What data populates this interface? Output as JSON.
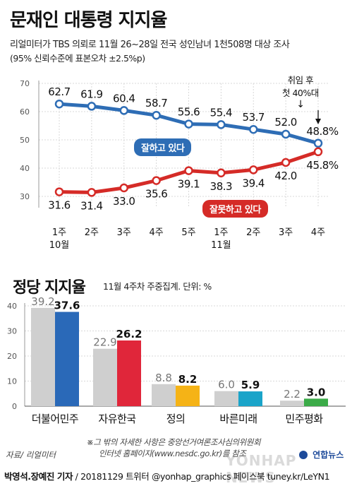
{
  "title": "문재인 대통령 지지율",
  "subtitle_line1": "리얼미터가 TBS 의뢰로 11월 26~28일 전국 성인남녀 1천508명 대상 조사",
  "subtitle_line2": "(95% 신뢰수준에 표본오차 ±2.5%p)",
  "callout_good": "잘하고 있다",
  "callout_bad": "잘못하고 있다",
  "tenure_note_line1": "취임 후",
  "tenure_note_line2": "첫 40%대",
  "tenure_arrow": "↓",
  "bar_title": "정당 지지율",
  "bar_subtitle": "11월 4주차 주중집계. 단위: %",
  "footnote_line1": "※그 밖의 자세한 사항은 중앙선거여론조사심의위원회",
  "footnote_line2": "인터넷 홈페이지(www.nesdc.go.kr)를 참조",
  "source": "자료/ 리얼미터",
  "logo_text": "연합뉴스",
  "watermark": "YONHAP NEWS",
  "credit_authors": "박영석.장예진 기자",
  "credit_rest": " / 20181129 트위터 @yonhap_graphics  페이스북 tuney.kr/LeYN1",
  "colors": {
    "positive_line": "#2e6db5",
    "negative_line": "#d52b27",
    "bar_prev": "#cfcfcf",
    "minju": "#2a69b8",
    "jayu": "#e0263a",
    "jeongui": "#f5b316",
    "bareun": "#1aa4c9",
    "pyeonghwa": "#3bab48"
  },
  "chart_data": [
    {
      "type": "line",
      "categories": [
        "1주\n10월",
        "2주",
        "3주",
        "4주",
        "5주",
        "1주\n11월",
        "2주",
        "3주",
        "4주"
      ],
      "ylim": [
        30,
        70
      ],
      "yticks": [
        30,
        40,
        50,
        60,
        70
      ],
      "grid": true,
      "series": [
        {
          "name": "잘하고 있다",
          "values": [
            62.7,
            61.9,
            60.4,
            58.7,
            55.6,
            55.4,
            53.7,
            52.0,
            48.8
          ]
        },
        {
          "name": "잘못하고 있다",
          "values": [
            31.6,
            31.4,
            33.0,
            35.6,
            39.1,
            38.3,
            39.4,
            42.0,
            45.8
          ]
        }
      ],
      "labels_positive": [
        "62.7",
        "61.9",
        "60.4",
        "58.7",
        "55.6",
        "55.4",
        "53.7",
        "52.0",
        "48.8"
      ],
      "labels_negative": [
        "31.6",
        "31.4",
        "33.0",
        "35.6",
        "39.1",
        "38.3",
        "39.4",
        "42.0",
        "45.8"
      ],
      "last_label_suffix": "%"
    },
    {
      "type": "bar",
      "categories": [
        "더불어민주",
        "자유한국",
        "정의",
        "바른미래",
        "민주평화"
      ],
      "ylim": [
        0,
        40
      ],
      "yticks": [
        0,
        10,
        20,
        30,
        40
      ],
      "grid": true,
      "series": [
        {
          "values": [
            39.2,
            22.9,
            8.8,
            6.0,
            2.2
          ]
        },
        {
          "values": [
            37.6,
            26.2,
            8.2,
            5.9,
            3.0
          ]
        }
      ]
    }
  ]
}
